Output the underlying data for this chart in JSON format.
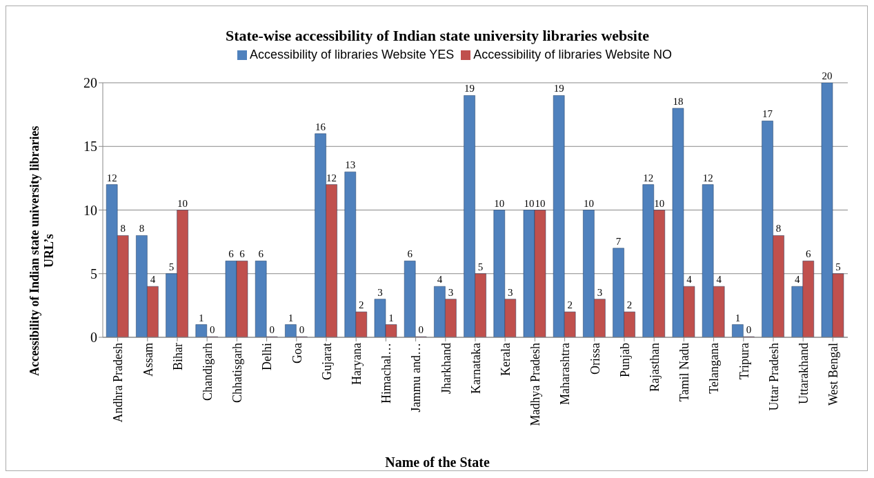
{
  "chart_data": {
    "type": "bar",
    "title": "State-wise accessibility of Indian state university libraries website",
    "xlabel": "Name of the State",
    "ylabel": "Accessibility of Indian state university libraries URL’s",
    "categories": [
      "Andhra Pradesh",
      "Assam",
      "Bihar",
      "Chandigarh",
      "Chhatisgarh",
      "Delhi",
      "Goa",
      "Gujarat",
      "Haryana",
      "Himachal…",
      "Jammu and…",
      "Jharkhand",
      "Karnataka",
      "Kerala",
      "Madhya Pradesh",
      "Maharashtra",
      "Orissa",
      "Punjab",
      "Rajasthan",
      "Tamil Nadu",
      "Telangana",
      "Tripura",
      "Uttar Pradesh",
      "Uttarakhand",
      "West Bengal"
    ],
    "series": [
      {
        "name": "Accessibility of  libraries Website YES",
        "color": "#4f81bd",
        "values": [
          12,
          8,
          5,
          1,
          6,
          6,
          1,
          16,
          13,
          3,
          6,
          4,
          19,
          10,
          10,
          19,
          10,
          7,
          12,
          18,
          12,
          1,
          17,
          4,
          20
        ]
      },
      {
        "name": "Accessibility of  libraries Website NO",
        "color": "#c0504d",
        "values": [
          8,
          4,
          10,
          0,
          6,
          0,
          0,
          12,
          2,
          1,
          0,
          3,
          5,
          3,
          10,
          2,
          3,
          2,
          10,
          4,
          4,
          0,
          8,
          6,
          5
        ]
      }
    ],
    "ylim": [
      0,
      20
    ],
    "yticks": [
      0,
      5,
      10,
      15,
      20
    ],
    "grid": "y",
    "legend": "top",
    "data_labels": true
  }
}
